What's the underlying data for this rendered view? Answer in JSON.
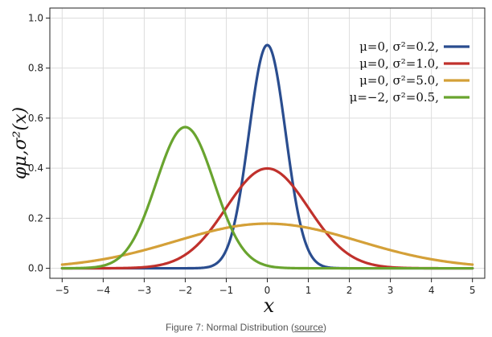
{
  "chart_data": {
    "type": "line",
    "xlabel": "x",
    "ylabel": "φμ,σ²(x)",
    "xlim": [
      -5.3,
      5.3
    ],
    "ylim": [
      -0.04,
      1.04
    ],
    "xticks": [
      -5,
      -4,
      -3,
      -2,
      -1,
      0,
      1,
      2,
      3,
      4,
      5
    ],
    "yticks": [
      0.0,
      0.2,
      0.4,
      0.6,
      0.8,
      1.0
    ],
    "xtick_labels": [
      "−5",
      "−4",
      "−3",
      "−2",
      "−1",
      "0",
      "1",
      "2",
      "3",
      "4",
      "5"
    ],
    "ytick_labels": [
      "0.0",
      "0.2",
      "0.4",
      "0.6",
      "0.8",
      "1.0"
    ],
    "grid": true,
    "legend_position": "top-right",
    "series": [
      {
        "name": "μ=0,   σ²=0.2,",
        "mu": 0,
        "sigma2": 0.2,
        "color": "#2a4d8f"
      },
      {
        "name": "μ=0,   σ²=1.0,",
        "mu": 0,
        "sigma2": 1.0,
        "color": "#c0312c"
      },
      {
        "name": "μ=0,   σ²=5.0,",
        "mu": 0,
        "sigma2": 5.0,
        "color": "#d4a038"
      },
      {
        "name": "μ=−2, σ²=0.5,",
        "mu": -2,
        "sigma2": 0.5,
        "color": "#69a42f"
      }
    ]
  },
  "caption": {
    "text": "Figure 7: Normal Distribution (",
    "link_text": "source",
    "suffix": ")"
  }
}
